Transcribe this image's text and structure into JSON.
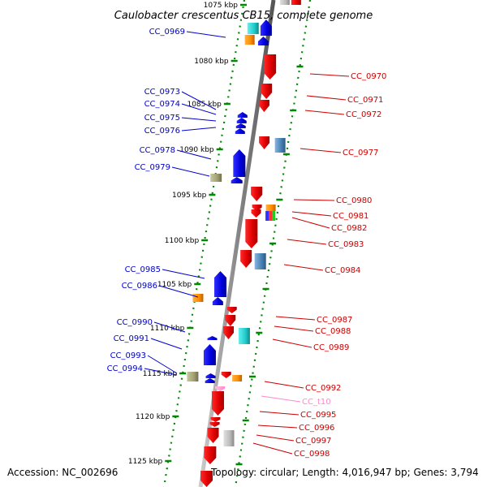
{
  "title": "Caulobacter crescentus CB15, complete genome",
  "accession": "Accession: NC_002696",
  "topology": "Topology: circular; Length: 4,016,947 bp; Genes: 3,794",
  "colors": {
    "blue_labels": "#0000cc",
    "red_labels": "#cc0000",
    "pink_label": "#ff88cc",
    "backbone": "#888888",
    "ticks": "#008800"
  },
  "scale_labels": [
    "1075 kbp",
    "1080 kbp",
    "1085 kbp",
    "1090 kbp",
    "1095 kbp",
    "1100 kbp",
    "1105 kbp",
    "1110 kbp",
    "1115 kbp",
    "1120 kbp",
    "1125 kbp"
  ],
  "left_genes": [
    "CC_0969",
    "CC_0973",
    "CC_0974",
    "CC_0975",
    "CC_0976",
    "CC_0978",
    "CC_0979",
    "CC_0985",
    "CC_0986",
    "CC_0990",
    "CC_0991",
    "CC_0993",
    "CC_0994"
  ],
  "right_genes": [
    "CC_0970",
    "CC_0971",
    "CC_0972",
    "CC_0977",
    "CC_0980",
    "CC_0981",
    "CC_0982",
    "CC_0983",
    "CC_0984",
    "CC_0987",
    "CC_0988",
    "CC_0989",
    "CC_0992",
    "CC_t10",
    "CC_0995",
    "CC_0996",
    "CC_0997",
    "CC_0998"
  ]
}
